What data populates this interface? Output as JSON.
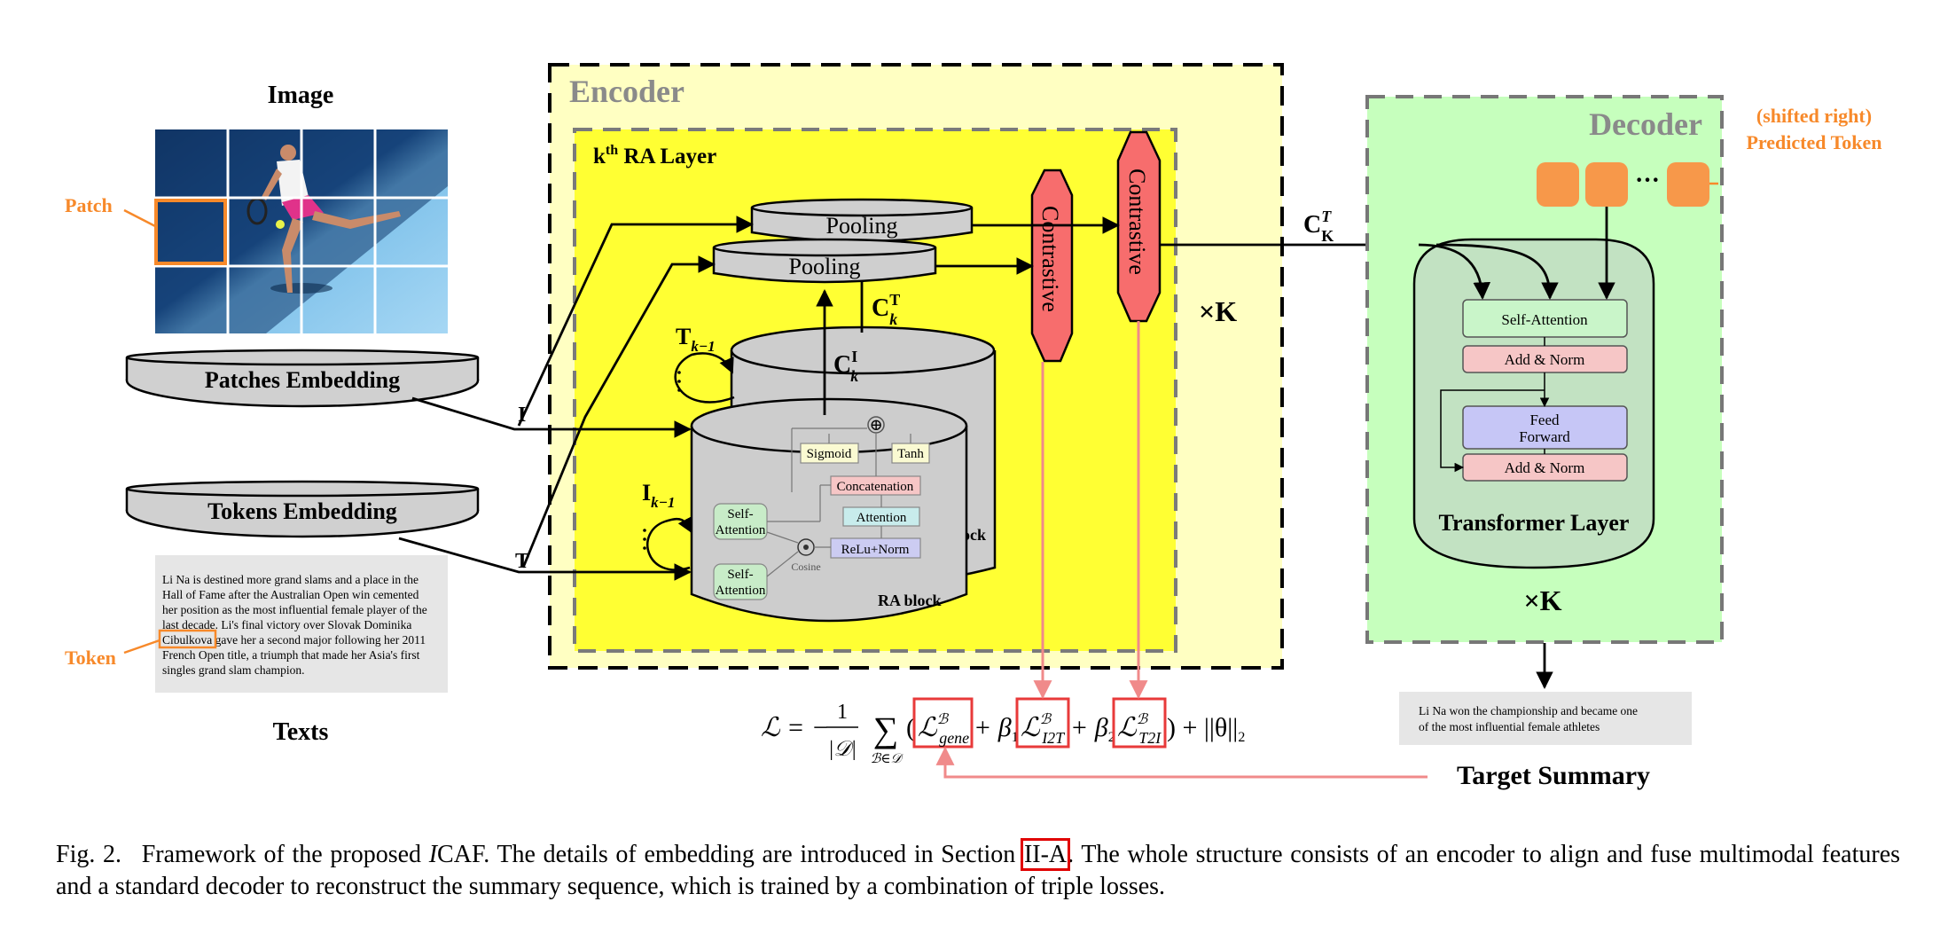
{
  "left": {
    "image_title": "Image",
    "patch_label": "Patch",
    "patches_embedding": "Patches Embedding",
    "tokens_embedding": "Tokens Embedding",
    "token_label": "Token",
    "texts_title": "Texts",
    "article_lines": [
      "Li Na is destined more grand slams and a place in the",
      "Hall of Fame after the Australian Open win cemented",
      "her position as the most influential female player of the",
      "last decade. Li's final victory over Slovak Dominika",
      "Cibulkova gave her a second major following her 2011",
      "French Open title, a triumph that made her Asia's first",
      "singles grand slam champion."
    ],
    "I_label": "I",
    "T_label": "T"
  },
  "encoder": {
    "title": "Encoder",
    "layer_title_k": "k",
    "layer_title_sup": "th",
    "layer_title_rest": " RA  Layer",
    "pooling_top": "Pooling",
    "pooling_bottom": "Pooling",
    "contrastive_1": "Contrastive",
    "contrastive_2": "Contrastive",
    "ck_T": "C",
    "ck_T_sup": "T",
    "ck_T_sub": "k",
    "ck_I": "C",
    "ck_I_sup": "I",
    "ck_I_sub": "k",
    "t_prev": "T",
    "t_prev_sub": "k−1",
    "i_prev": "I",
    "i_prev_sub": "k−1",
    "times_k": "×K",
    "ra_block_back_label": "lock",
    "ra_block_label": "RA block",
    "sigmoid": "Sigmoid",
    "tanh": "Tanh",
    "concatenation": "Concatenation",
    "attention": "Attention",
    "relu_norm": "ReLu+Norm",
    "self_attention_1": [
      "Self-",
      "Attention"
    ],
    "self_attention_2": [
      "Self-",
      "Attention"
    ],
    "cosine": "Cosine",
    "plus_symbol": "⊕",
    "dot_symbol": "⊙"
  },
  "decoder": {
    "title": "Decoder",
    "shifted_right": "(shifted right)",
    "predicted_token": "Predicted Token",
    "dots": "···",
    "ck_label": "C",
    "ck_label_sup": "T",
    "ck_label_sub": "K",
    "self_attention": "Self-Attention",
    "add_norm_1": "Add & Norm",
    "feed_forward": [
      "Feed",
      "Forward"
    ],
    "add_norm_2": "Add & Norm",
    "transformer_layer": "Transformer Layer",
    "times_k": "×K",
    "summary_lines": [
      "Li Na won the championship and became one",
      "of the most influential female athletes"
    ],
    "target_summary": "Target Summary"
  },
  "loss": {
    "lhs": "ℒ = −",
    "frac_num": "1",
    "frac_den": "|𝒟|",
    "sum": "∑",
    "sum_sub": "ℬ∈𝒟",
    "open": "(",
    "gene": "ℒ",
    "gene_sup": "ℬ",
    "gene_sub": "gene",
    "plus_beta1": "+ β",
    "beta1_sub": "1",
    "i2t": "ℒ",
    "i2t_sup": "ℬ",
    "i2t_sub": "I2T",
    "plus_beta2": "+ β",
    "beta2_sub": "2",
    "t2i": "ℒ",
    "t2i_sup": "ℬ",
    "t2i_sub": "T2I",
    "tail": ") + ||θ||",
    "tail_sub": "2"
  },
  "caption": {
    "fig_label": "Fig. 2.",
    "part1": "Framework of the proposed ",
    "icaf_i": "I",
    "icaf_rest": "CAF. The details of embedding are introduced in Section ",
    "section_ref": "II-A",
    "part2": ". The whole structure consists of an encoder to align and fuse multimodal features and a standard decoder to reconstruct the summary sequence, which is trained by a combination of triple losses."
  },
  "colors": {
    "encoder_outer": "#ffffc0",
    "encoder_inner": "#ffff33",
    "decoder_bg": "#c8ffbe",
    "contrastive": "#f76d6d",
    "orange": "#f7984a",
    "loss_red": "#e83a3a",
    "pink_arrow": "#f08a8a"
  }
}
